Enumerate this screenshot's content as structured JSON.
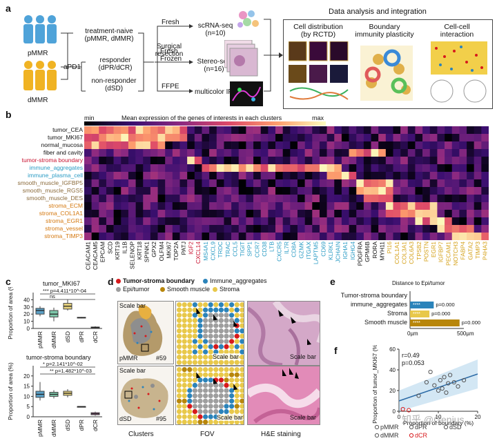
{
  "panel_a": {
    "letter": "a",
    "groups": [
      "pMMR",
      "dMMR"
    ],
    "treatment": "aPD1",
    "arms": [
      {
        "label": "treatment-naive",
        "sub": "(pMMR, dMMR)"
      },
      {
        "label": "responder",
        "sub": "(dPR/dCR)"
      },
      {
        "label": "non-responder",
        "sub": "(dSD)"
      }
    ],
    "surgery": [
      "Surgical",
      "resection"
    ],
    "samples": [
      "Fresh",
      "Fresh",
      "Frozen",
      "FFPE"
    ],
    "assays": [
      {
        "name": "scRNA-seq",
        "n": "(n=10)"
      },
      {
        "name": "Stereo-seq",
        "n": "(n=16)"
      },
      {
        "name": "multicolor IF",
        "n": ""
      }
    ],
    "analysis_title": "Data analysis and integration",
    "analyses": [
      {
        "line1": "Cell distribution",
        "line2": "(by RCTD)"
      },
      {
        "line1": "Boundary",
        "line2": "immunity plasticity"
      },
      {
        "line1": "Cell-cell",
        "line2": "interaction"
      }
    ]
  },
  "panel_b": {
    "letter": "b",
    "legend_min": "min",
    "legend_title": "Mean expression of the genes of interests in each clusters",
    "legend_max": "max",
    "rows": [
      {
        "label": "tumor_CEA",
        "color": "#111111"
      },
      {
        "label": "tumor_MKI67",
        "color": "#111111"
      },
      {
        "label": "normal_mucosa",
        "color": "#111111"
      },
      {
        "label": "fiber and cavity",
        "color": "#111111"
      },
      {
        "label": "tumor-stroma boundary",
        "color": "#c8102e"
      },
      {
        "label": "immune_aggregates",
        "color": "#2a9bc4"
      },
      {
        "label": "immune_plasma_cell",
        "color": "#2a9bc4"
      },
      {
        "label": "smooth_muscle_IGFBP5",
        "color": "#8a6a3a"
      },
      {
        "label": "smooth_muscle_RGS5",
        "color": "#8a6a3a"
      },
      {
        "label": "smooth_muscle_DES",
        "color": "#8a6a3a"
      },
      {
        "label": "stroma_ECM",
        "color": "#d4780f"
      },
      {
        "label": "stroma_COL1A1",
        "color": "#d4780f"
      },
      {
        "label": "stroma_EGR1",
        "color": "#d4780f"
      },
      {
        "label": "stroma_vessel",
        "color": "#d4780f"
      },
      {
        "label": "stroma_TIMP3",
        "color": "#d4780f"
      }
    ],
    "genes": [
      {
        "name": "CEACAM1",
        "color": "#111111"
      },
      {
        "name": "CEACAM5",
        "color": "#111111"
      },
      {
        "name": "EPCAM",
        "color": "#111111"
      },
      {
        "name": "SCD",
        "color": "#111111"
      },
      {
        "name": "KRT19",
        "color": "#111111"
      },
      {
        "name": "IL1B",
        "color": "#111111"
      },
      {
        "name": "SELENOP",
        "color": "#111111"
      },
      {
        "name": "KRT18",
        "color": "#111111"
      },
      {
        "name": "SPINK1",
        "color": "#111111"
      },
      {
        "name": "GPX2",
        "color": "#111111"
      },
      {
        "name": "OLFM4",
        "color": "#111111"
      },
      {
        "name": "MKI67",
        "color": "#111111"
      },
      {
        "name": "TOP2A",
        "color": "#111111"
      },
      {
        "name": "PATJ",
        "color": "#111111"
      },
      {
        "name": "IGF2",
        "color": "#c8102e"
      },
      {
        "name": "CXCL14",
        "color": "#c8102e"
      },
      {
        "name": "MS4A1",
        "color": "#2a9bc4"
      },
      {
        "name": "CXCL9",
        "color": "#2a9bc4"
      },
      {
        "name": "TRDC",
        "color": "#2a9bc4"
      },
      {
        "name": "TRAC",
        "color": "#2a9bc4"
      },
      {
        "name": "CCL5",
        "color": "#2a9bc4"
      },
      {
        "name": "TIGIT",
        "color": "#2a9bc4"
      },
      {
        "name": "SPP1",
        "color": "#2a9bc4"
      },
      {
        "name": "CCR7",
        "color": "#2a9bc4"
      },
      {
        "name": "CD38",
        "color": "#2a9bc4"
      },
      {
        "name": "LTB",
        "color": "#2a9bc4"
      },
      {
        "name": "CXCR5",
        "color": "#2a9bc4"
      },
      {
        "name": "IL7R",
        "color": "#2a9bc4"
      },
      {
        "name": "CD8A",
        "color": "#2a9bc4"
      },
      {
        "name": "GZMK",
        "color": "#2a9bc4"
      },
      {
        "name": "ITGAX",
        "color": "#2a9bc4"
      },
      {
        "name": "LAPTM5",
        "color": "#2a9bc4"
      },
      {
        "name": "CD69",
        "color": "#2a9bc4"
      },
      {
        "name": "KLRK1",
        "color": "#2a9bc4"
      },
      {
        "name": "JCHAIN",
        "color": "#2a9bc4"
      },
      {
        "name": "IGHA1",
        "color": "#2a9bc4"
      },
      {
        "name": "IGHG4",
        "color": "#2a9bc4"
      },
      {
        "name": "PDGFRA",
        "color": "#111111"
      },
      {
        "name": "GPM6B",
        "color": "#111111"
      },
      {
        "name": "RORA",
        "color": "#111111"
      },
      {
        "name": "MYH11",
        "color": "#111111"
      },
      {
        "name": "PI16",
        "color": "#d4a017"
      },
      {
        "name": "COL1A1",
        "color": "#d4a017"
      },
      {
        "name": "COL3A1",
        "color": "#d4a017"
      },
      {
        "name": "COL6A3",
        "color": "#d4a017"
      },
      {
        "name": "TPSB2",
        "color": "#d4a017"
      },
      {
        "name": "POSTN",
        "color": "#d4a017"
      },
      {
        "name": "EGR1",
        "color": "#d4a017"
      },
      {
        "name": "IGFBP7",
        "color": "#d4a017"
      },
      {
        "name": "PECAM1",
        "color": "#d4a017"
      },
      {
        "name": "NOTCH3",
        "color": "#d4a017"
      },
      {
        "name": "FABP4",
        "color": "#d4a017"
      },
      {
        "name": "GATA2",
        "color": "#d4a017"
      },
      {
        "name": "TIMP3",
        "color": "#d4a017"
      },
      {
        "name": "P4HA3",
        "color": "#d4a017"
      }
    ]
  },
  "panel_c": {
    "letter": "c",
    "chart_data": [
      {
        "type": "box",
        "title": "tumor_MKI67",
        "ylabel": "Proportion of area (%)",
        "ylim": [
          0,
          50
        ],
        "yticks": [
          0,
          10,
          20,
          30,
          40
        ],
        "categories": [
          "pMMR",
          "dMMR",
          "dSD",
          "dPR",
          "dCR"
        ],
        "box_colors": [
          "#5aa0c6",
          "#7dc6a9",
          "#e7d27d",
          "#d35a5a",
          "#c96fae"
        ],
        "boxes": [
          {
            "min": 17,
            "q1": 20,
            "median": 25,
            "q3": 28,
            "max": 31
          },
          {
            "min": 10,
            "q1": 16,
            "median": 20,
            "q3": 25,
            "max": 29
          },
          {
            "min": 25,
            "q1": 27,
            "median": 31,
            "q3": 35,
            "max": 40
          },
          {
            "min": 14,
            "q1": 14.5,
            "median": 15,
            "q3": 15.5,
            "max": 16
          },
          {
            "min": 0.5,
            "q1": 1,
            "median": 1.5,
            "q3": 2,
            "max": 3
          }
        ],
        "annotations": [
          "*** p=4.411*10^-04",
          "ns"
        ]
      },
      {
        "type": "box",
        "title": "tumor-stroma boundary",
        "ylabel": "Proportion of area (%)",
        "ylim": [
          0,
          25
        ],
        "yticks": [
          0,
          5,
          10,
          15,
          20
        ],
        "categories": [
          "pMMR",
          "dMMR",
          "dSD",
          "dPR",
          "dCR"
        ],
        "box_colors": [
          "#5aa0c6",
          "#7dc6a9",
          "#e7d27d",
          "#d35a5a",
          "#c96fae"
        ],
        "boxes": [
          {
            "min": 8,
            "q1": 9.5,
            "median": 11,
            "q3": 12.5,
            "max": 17
          },
          {
            "min": 9,
            "q1": 10,
            "median": 11,
            "q3": 12,
            "max": 13
          },
          {
            "min": 9.5,
            "q1": 10.5,
            "median": 11.5,
            "q3": 12.5,
            "max": 13.5
          },
          {
            "min": 5,
            "q1": 5,
            "median": 5,
            "q3": 5,
            "max": 5
          },
          {
            "min": 0.5,
            "q1": 1,
            "median": 1.5,
            "q3": 2,
            "max": 2.5
          }
        ],
        "annotations": [
          "* p=2.141*10^-02",
          "** p=1.482*10^-03"
        ]
      }
    ]
  },
  "panel_d": {
    "letter": "d",
    "legend": [
      {
        "label": "Tumor-stroma boundary",
        "color": "#d7191c",
        "bold": true
      },
      {
        "label": "Immune_aggregates",
        "color": "#2b83ba",
        "bold": false
      },
      {
        "label": "Epi/tumor",
        "color": "#9e9e9e",
        "bold": false
      },
      {
        "label": "Smooth muscle",
        "color": "#b8860b",
        "bold": false
      },
      {
        "label": "Stroma",
        "color": "#e8c84a",
        "bold": false
      }
    ],
    "scale_bar": "Scale bar",
    "samples": [
      {
        "group": "pMMR",
        "id": "#59"
      },
      {
        "group": "dSD",
        "id": "#95"
      }
    ],
    "columns": [
      "Clusters",
      "FOV",
      "H&E staining"
    ]
  },
  "panel_e": {
    "letter": "e",
    "chart_data": {
      "type": "bar",
      "title": "Distance to Epi/tumor",
      "categories": [
        "Tumor-stroma boundary",
        "immune_aggregates",
        "Stroma",
        "Smooth muscle"
      ],
      "values": [
        0,
        220,
        180,
        460
      ],
      "colors": [
        "#d7191c",
        "#2b83ba",
        "#e8c84a",
        "#b8860b"
      ],
      "significance": [
        "",
        "****",
        "****",
        "****"
      ],
      "pvalues": [
        "",
        "p=0.000",
        "p=0.000",
        "p=0.000"
      ],
      "xlim": [
        0,
        500
      ],
      "xtick_labels": [
        "0µm",
        "500µm"
      ]
    }
  },
  "panel_f": {
    "letter": "f",
    "chart_data": {
      "type": "scatter",
      "xlabel": "Proportion of boundary (%)",
      "ylabel": "Proportion of tumor_MKI67 (%)",
      "xlim": [
        0,
        20
      ],
      "ylim": [
        0,
        60
      ],
      "xticks": [
        0,
        10,
        20
      ],
      "yticks": [
        0,
        20,
        40,
        60
      ],
      "r": "r=0.49",
      "p": "p=0.053",
      "points": [
        {
          "x": 1,
          "y": 2,
          "group": "dCR"
        },
        {
          "x": 2.5,
          "y": 1,
          "group": "dCR"
        },
        {
          "x": 5,
          "y": 15,
          "group": "dPR"
        },
        {
          "x": 7,
          "y": 28,
          "group": "pMMR"
        },
        {
          "x": 8,
          "y": 38,
          "group": "pMMR"
        },
        {
          "x": 9,
          "y": 25,
          "group": "dMMR"
        },
        {
          "x": 10,
          "y": 20,
          "group": "dMMR"
        },
        {
          "x": 10.5,
          "y": 30,
          "group": "pMMR"
        },
        {
          "x": 11,
          "y": 22,
          "group": "dSD"
        },
        {
          "x": 11.5,
          "y": 33,
          "group": "dSD"
        },
        {
          "x": 12,
          "y": 18,
          "group": "dMMR"
        },
        {
          "x": 12.5,
          "y": 27,
          "group": "pMMR"
        },
        {
          "x": 13,
          "y": 35,
          "group": "dSD"
        },
        {
          "x": 14,
          "y": 28,
          "group": "dMMR"
        },
        {
          "x": 15,
          "y": 24,
          "group": "pMMR"
        },
        {
          "x": 16.5,
          "y": 30,
          "group": "dSD"
        }
      ],
      "fit": {
        "x0": 0,
        "y0": 10,
        "x1": 20,
        "y1": 36
      },
      "legend": [
        "pMMR",
        "dPR",
        "dSD",
        "dMMR",
        "dCR"
      ]
    }
  },
  "watermark": "知乎 @Genius"
}
